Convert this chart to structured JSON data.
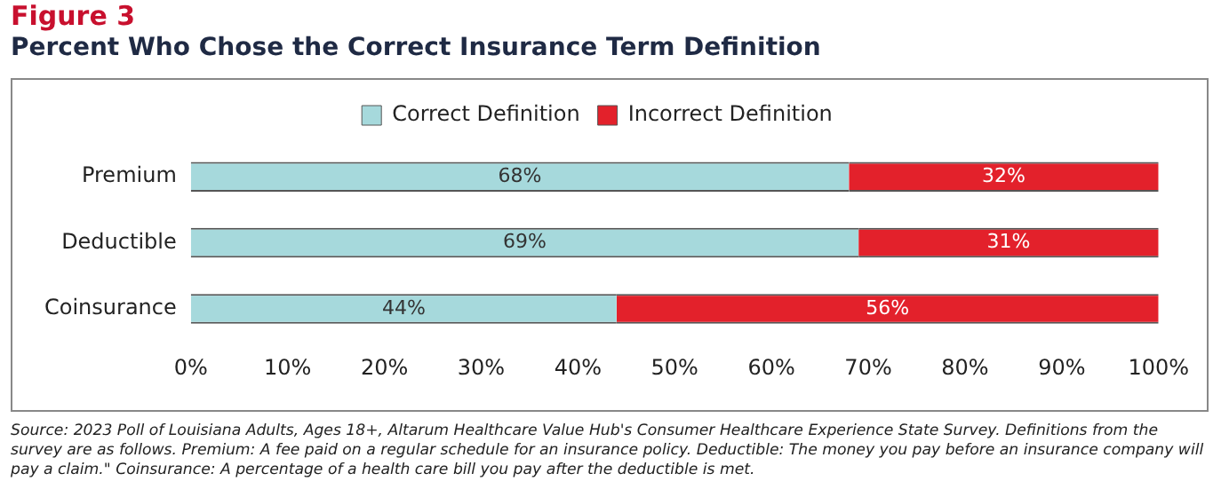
{
  "chart_data": {
    "type": "bar",
    "title": "Figure 3",
    "subtitle": "Percent Who Chose the Correct Insurance Term Definition",
    "orientation": "horizontal",
    "stacked": true,
    "categories": [
      "Premium",
      "Deductible",
      "Coinsurance"
    ],
    "series": [
      {
        "name": "Correct Definition",
        "color": "#a6d9dc",
        "values": [
          68,
          69,
          44
        ],
        "value_labels": [
          "68%",
          "69%",
          "44%"
        ]
      },
      {
        "name": "Incorrect Definition",
        "color": "#e3212b",
        "values": [
          32,
          31,
          56
        ],
        "value_labels": [
          "32%",
          "31%",
          "56%"
        ]
      }
    ],
    "xlim": [
      0,
      100
    ],
    "xticks": [
      {
        "value": 0,
        "label": "0%"
      },
      {
        "value": 10,
        "label": "10%"
      },
      {
        "value": 20,
        "label": "20%"
      },
      {
        "value": 30,
        "label": "30%"
      },
      {
        "value": 40,
        "label": "40%"
      },
      {
        "value": 50,
        "label": "50%"
      },
      {
        "value": 60,
        "label": "60%"
      },
      {
        "value": 70,
        "label": "70%"
      },
      {
        "value": 80,
        "label": "80%"
      },
      {
        "value": 90,
        "label": "90%"
      },
      {
        "value": 100,
        "label": "100%"
      }
    ],
    "grid": false,
    "legend": "top",
    "annotations": [
      "Source: 2023 Poll of Louisiana Adults, Ages 18+, Altarum Healthcare Value Hub's Consumer Healthcare Experience State Survey. Definitions from the survey are as follows. Premium: A fee paid on a regular schedule for an insurance policy. Deductible: The money you pay before an insurance company will pay a claim.\" Coinsurance: A percentage of a health care bill you pay after the deductible is met."
    ]
  }
}
